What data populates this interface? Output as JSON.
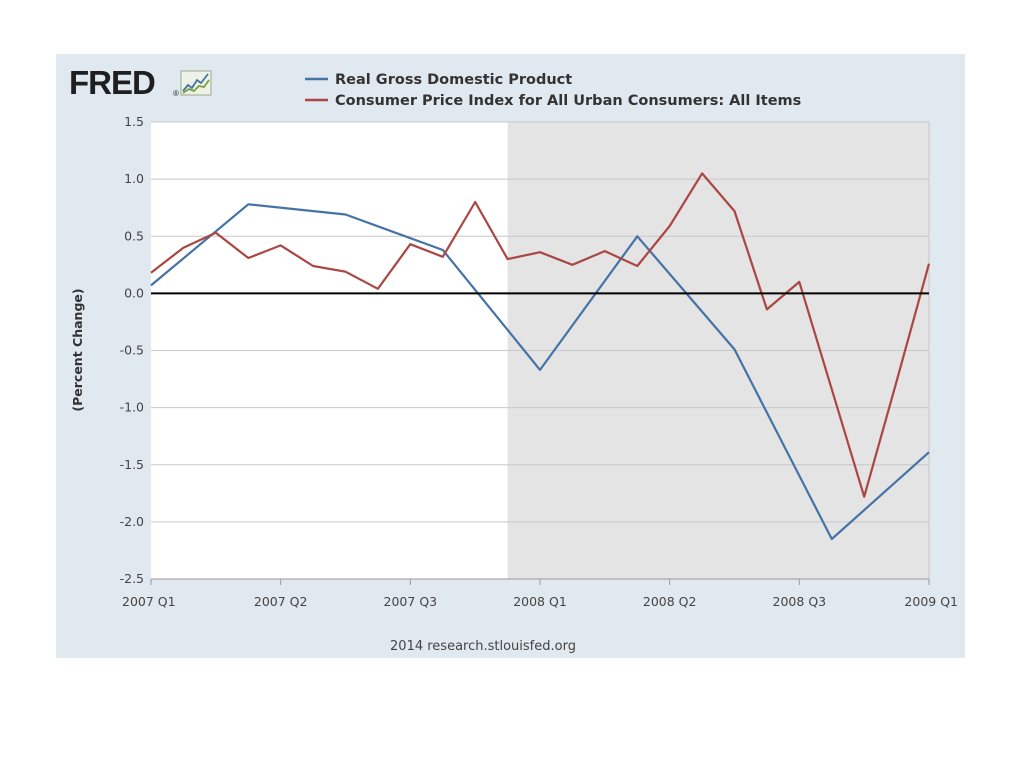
{
  "logo": {
    "text": "FRED",
    "mark": "®"
  },
  "credit": "2014 research.stlouisfed.org",
  "colors": {
    "gdp": "#4572a7",
    "cpi": "#aa4643",
    "recession": "#e4e4e4",
    "panel": "#e1e9f0",
    "zero_line": "#000000"
  },
  "chart_data": {
    "type": "line",
    "title": "",
    "ylabel": "(Percent Change)",
    "xlabel": "",
    "ylim": [
      -2.5,
      1.5
    ],
    "y_ticks": [
      1.5,
      1.0,
      0.5,
      0.0,
      -0.5,
      -1.0,
      -1.5,
      -2.0,
      -2.5
    ],
    "y_tick_labels": [
      "1.5",
      "1.0",
      "0.5",
      "0.0",
      "-0.5",
      "-1.0",
      "-1.5",
      "-2.0",
      "-2.5"
    ],
    "x_range": [
      0,
      24
    ],
    "x_ticks": [
      0,
      4,
      8,
      12,
      16,
      20,
      24
    ],
    "x_tick_labels": [
      "2007 Q1",
      "2007 Q2",
      "2007 Q3",
      "2008 Q1",
      "2008 Q2",
      "2008 Q3",
      "2009 Q1"
    ],
    "recession_shading": {
      "start": 11,
      "end": 24
    },
    "zero_line": 0,
    "legend_position": "top",
    "series": [
      {
        "name": "Real Gross Domestic Product",
        "color": "#4572a7",
        "x": [
          0,
          3,
          6,
          9,
          12,
          15,
          18,
          21,
          24
        ],
        "values": [
          0.07,
          0.78,
          0.69,
          0.38,
          -0.67,
          0.5,
          -0.49,
          -2.15,
          -1.39
        ]
      },
      {
        "name": "Consumer Price Index for All Urban Consumers: All Items",
        "color": "#aa4643",
        "x": [
          0,
          1,
          2,
          3,
          4,
          5,
          6,
          7,
          8,
          9,
          10,
          11,
          12,
          13,
          14,
          15,
          16,
          17,
          18,
          19,
          20,
          21,
          22,
          23,
          24
        ],
        "values": [
          0.18,
          0.4,
          0.53,
          0.31,
          0.42,
          0.24,
          0.19,
          0.04,
          0.43,
          0.32,
          0.8,
          0.3,
          0.36,
          0.25,
          0.37,
          0.24,
          0.59,
          1.05,
          0.72,
          -0.14,
          0.1,
          -0.84,
          -1.78,
          -0.77,
          0.26
        ]
      }
    ]
  }
}
